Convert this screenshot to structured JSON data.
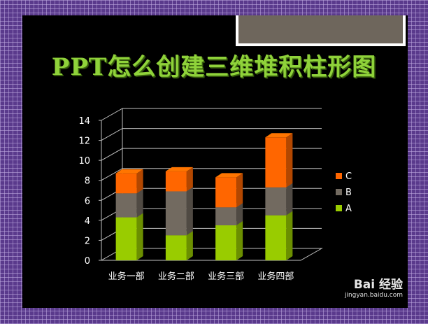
{
  "slide": {
    "title": "PPT怎么创建三维堆积柱形图"
  },
  "watermark": {
    "main": "Bai 经验",
    "url": "jingyan.baidu.com"
  },
  "chart_data": {
    "type": "bar",
    "stacked": true,
    "three_d": true,
    "categories": [
      "业务一部",
      "业务二部",
      "业务三部",
      "业务四部"
    ],
    "series": [
      {
        "name": "A",
        "values": [
          4.3,
          2.5,
          3.5,
          4.5
        ],
        "color": "#99cc00"
      },
      {
        "name": "B",
        "values": [
          2.4,
          4.4,
          1.8,
          2.8
        ],
        "color": "#726a60"
      },
      {
        "name": "C",
        "values": [
          2.0,
          2.0,
          3.0,
          5.0
        ],
        "color": "#ff6600"
      }
    ],
    "ylim": [
      0,
      14
    ],
    "yticks": [
      0,
      2,
      4,
      6,
      8,
      10,
      12,
      14
    ],
    "grid": true,
    "legend_position": "right"
  }
}
